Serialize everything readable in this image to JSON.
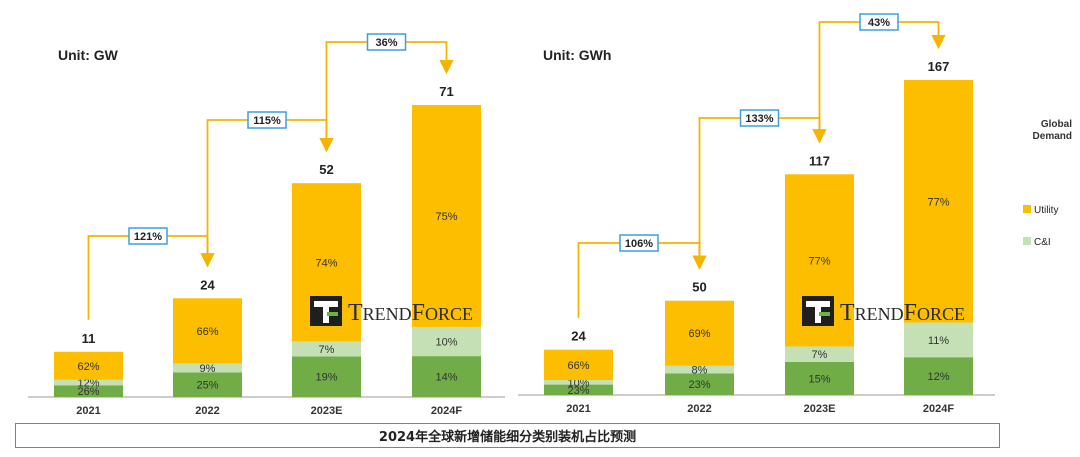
{
  "caption": "2024年全球新增储能细分类别装机占比预测",
  "legend": {
    "title_lines": [
      "Global",
      "Demand"
    ],
    "items": [
      {
        "label": "Utility",
        "color": "#fdbe00"
      },
      {
        "label": "C&I",
        "color": "#c5e0b4"
      }
    ]
  },
  "watermark": {
    "brand_first": "T",
    "brand_rest": "RENDFORCE",
    "brand_first2": "F",
    "brand_rest2": "ORCE"
  },
  "colors": {
    "utility": "#fdbe00",
    "ci": "#c5e0b4",
    "residential": "#70ad47",
    "connector": "#f5b400",
    "growth_box_border": "#3aa0e0"
  },
  "chart_data": [
    {
      "type": "bar",
      "unit": "Unit: GW",
      "categories": [
        "2021",
        "2022",
        "2023E",
        "2024F"
      ],
      "totals": [
        11,
        24,
        52,
        71
      ],
      "ylim": [
        0,
        71
      ],
      "series": [
        {
          "key": "residential",
          "values_pct": [
            26,
            25,
            19,
            14
          ]
        },
        {
          "key": "ci",
          "name": "C&I",
          "values_pct": [
            12,
            9,
            7,
            10
          ]
        },
        {
          "key": "utility",
          "name": "Utility",
          "values_pct": [
            62,
            66,
            74,
            75
          ]
        }
      ],
      "growth": [
        {
          "from": 0,
          "to": 1,
          "label": "121%"
        },
        {
          "from": 1,
          "to": 2,
          "label": "115%"
        },
        {
          "from": 2,
          "to": 3,
          "label": "36%"
        }
      ]
    },
    {
      "type": "bar",
      "unit": "Unit: GWh",
      "categories": [
        "2021",
        "2022",
        "2023E",
        "2024F"
      ],
      "totals": [
        24,
        50,
        117,
        167
      ],
      "ylim": [
        0,
        167
      ],
      "series": [
        {
          "key": "residential",
          "values_pct": [
            23,
            23,
            15,
            12
          ]
        },
        {
          "key": "ci",
          "name": "C&I",
          "values_pct": [
            10,
            8,
            7,
            11
          ]
        },
        {
          "key": "utility",
          "name": "Utility",
          "values_pct": [
            66,
            69,
            77,
            77
          ]
        }
      ],
      "growth": [
        {
          "from": 0,
          "to": 1,
          "label": "106%"
        },
        {
          "from": 1,
          "to": 2,
          "label": "133%"
        },
        {
          "from": 2,
          "to": 3,
          "label": "43%"
        }
      ]
    }
  ]
}
